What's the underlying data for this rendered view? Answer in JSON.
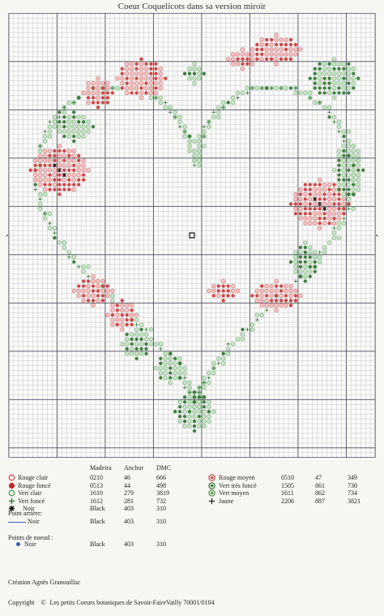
{
  "title": "Coeur Coquelicots dans sa version miroir",
  "legend": {
    "headers": {
      "madeira": "Madeira",
      "anchor": "Anchor",
      "dmc": "DMC"
    },
    "left": [
      {
        "name": "Rouge clair",
        "madeira": "0210",
        "anchor": "46",
        "dmc": "666",
        "symbol": "ring",
        "color": "#d95a5a"
      },
      {
        "name": "Rouge foncé",
        "madeira": "0513",
        "anchor": "44",
        "dmc": "498",
        "symbol": "dot",
        "color": "#c42a2a"
      },
      {
        "name": "Vert clair",
        "madeira": "1610",
        "anchor": "279",
        "dmc": "3819",
        "symbol": "ring",
        "color": "#5aa15a"
      },
      {
        "name": "Vert foncé",
        "madeira": "1612",
        "anchor": "281",
        "dmc": "732",
        "symbol": "plus",
        "color": "#3a7a3a"
      },
      {
        "name": "Noir",
        "madeira": "Black",
        "anchor": "403",
        "dmc": "310",
        "symbol": "star",
        "color": "#111111"
      }
    ],
    "right": [
      {
        "name": "Rouge moyen",
        "madeira": "0510",
        "anchor": "47",
        "dmc": "349",
        "symbol": "dotring",
        "color": "#c84040"
      },
      {
        "name": "Vert très foncé",
        "madeira": "1505",
        "anchor": "861",
        "dmc": "730",
        "symbol": "dotring",
        "color": "#2f6a2f"
      },
      {
        "name": "Vert moyen",
        "madeira": "1611",
        "anchor": "862",
        "dmc": "734",
        "symbol": "dotring",
        "color": "#4f8f3f"
      },
      {
        "name": "Jaune",
        "madeira": "2206",
        "anchor": "887",
        "dmc": "3821",
        "symbol": "cross",
        "color": "#222222"
      }
    ]
  },
  "backstitch": {
    "label": "Point arrière:",
    "name": "Noir",
    "madeira": "Black",
    "anchor": "403",
    "dmc": "310",
    "color": "#3b5aa8"
  },
  "knots": {
    "label": "Points de noeud :",
    "name": "Noir",
    "madeira": "Black",
    "anchor": "403",
    "dmc": "310",
    "color": "#3b5aa8"
  },
  "credit": "Création Agnès Granouillac",
  "copyright": {
    "word": "Copyright",
    "symbol": "©",
    "text": "Les petits Coeurs botaniques de Savoir-FaireVailly 70001/0104"
  },
  "colors": {
    "grid_minor": "#b7b9c4",
    "grid_major": "#4a4c5a",
    "red_light": "#e88a8a",
    "red_mid": "#d14545",
    "green_light": "#8fc48f",
    "green_dark": "#3c7f3c",
    "black": "#111111"
  }
}
